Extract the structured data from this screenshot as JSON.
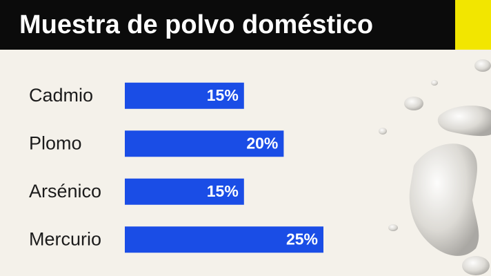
{
  "chart_data": {
    "type": "bar",
    "orientation": "horizontal",
    "title": "Muestra de polvo doméstico",
    "categories": [
      "Cadmio",
      "Plomo",
      "Arsénico",
      "Mercurio"
    ],
    "values": [
      15,
      20,
      15,
      25
    ],
    "value_labels": [
      "15%",
      "20%",
      "15%",
      "25%"
    ],
    "color": "#1a4de6"
  }
}
